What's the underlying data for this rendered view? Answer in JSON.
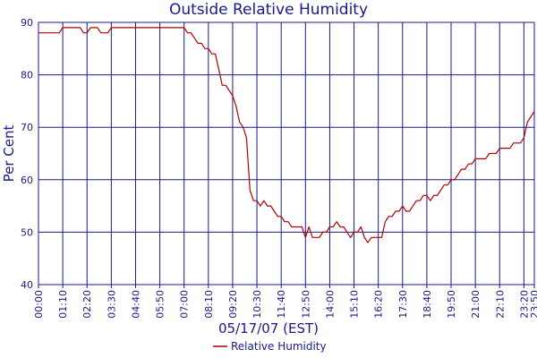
{
  "chart_data": {
    "type": "line",
    "title": "Outside Relative Humidity",
    "xlabel": "05/17/07 (EST)",
    "ylabel": "Per Cent",
    "ylim": [
      40,
      90
    ],
    "yticks": [
      40,
      50,
      60,
      70,
      80,
      90
    ],
    "x_range": [
      "00:00",
      "23:50"
    ],
    "x_ticks": [
      "00:00",
      "01:10",
      "02:20",
      "03:30",
      "04:40",
      "05:50",
      "07:00",
      "08:10",
      "09:20",
      "10:30",
      "11:40",
      "12:50",
      "14:00",
      "15:10",
      "16:20",
      "17:30",
      "18:40",
      "19:50",
      "21:00",
      "22:10",
      "23:20",
      "23:50"
    ],
    "grid": true,
    "legend_position": "bottom-center",
    "series": [
      {
        "name": "Relative Humidity",
        "color": "#b00000",
        "x": [
          "00:00",
          "00:40",
          "00:50",
          "01:00",
          "01:10",
          "01:30",
          "02:00",
          "02:10",
          "02:20",
          "02:30",
          "02:40",
          "02:50",
          "03:00",
          "03:10",
          "03:20",
          "03:30",
          "03:40",
          "04:00",
          "05:00",
          "06:00",
          "07:00",
          "07:10",
          "07:20",
          "07:30",
          "07:40",
          "07:50",
          "08:00",
          "08:10",
          "08:20",
          "08:30",
          "08:40",
          "08:50",
          "09:00",
          "09:10",
          "09:20",
          "09:30",
          "09:40",
          "09:50",
          "10:00",
          "10:10",
          "10:20",
          "10:30",
          "10:40",
          "10:50",
          "11:00",
          "11:10",
          "11:20",
          "11:30",
          "11:40",
          "11:50",
          "12:00",
          "12:10",
          "12:20",
          "12:30",
          "12:40",
          "12:50",
          "13:00",
          "13:10",
          "13:20",
          "13:30",
          "13:40",
          "13:50",
          "14:00",
          "14:10",
          "14:20",
          "14:30",
          "14:40",
          "14:50",
          "15:00",
          "15:10",
          "15:20",
          "15:30",
          "15:40",
          "15:50",
          "16:00",
          "16:10",
          "16:20",
          "16:30",
          "16:40",
          "16:50",
          "17:00",
          "17:10",
          "17:20",
          "17:30",
          "17:40",
          "17:50",
          "18:00",
          "18:10",
          "18:20",
          "18:30",
          "18:40",
          "18:50",
          "19:00",
          "19:10",
          "19:20",
          "19:30",
          "19:40",
          "19:50",
          "20:00",
          "20:10",
          "20:20",
          "20:30",
          "20:40",
          "20:50",
          "21:00",
          "21:10",
          "21:20",
          "21:30",
          "21:40",
          "21:50",
          "22:00",
          "22:10",
          "22:20",
          "22:30",
          "22:40",
          "22:50",
          "23:00",
          "23:10",
          "23:20",
          "23:30",
          "23:40",
          "23:50"
        ],
        "values": [
          88,
          88,
          88,
          88,
          89,
          89,
          89,
          88,
          88,
          89,
          89,
          89,
          88,
          88,
          88,
          89,
          89,
          89,
          89,
          89,
          89,
          88,
          88,
          87,
          86,
          86,
          85,
          85,
          84,
          84,
          81,
          78,
          78,
          77,
          76,
          74,
          71,
          70,
          68,
          58,
          56,
          56,
          55,
          56,
          55,
          55,
          54,
          53,
          53,
          52,
          52,
          51,
          51,
          51,
          51,
          49,
          51,
          49,
          49,
          49,
          50,
          50,
          51,
          51,
          52,
          51,
          51,
          50,
          49,
          50,
          50,
          51,
          49,
          48,
          49,
          49,
          49,
          49,
          52,
          53,
          53,
          54,
          54,
          55,
          54,
          54,
          55,
          56,
          56,
          57,
          57,
          56,
          57,
          57,
          58,
          59,
          59,
          60,
          60,
          61,
          62,
          62,
          63,
          63,
          64,
          64,
          64,
          64,
          65,
          65,
          65,
          66,
          66,
          66,
          66,
          67,
          67,
          67,
          68,
          71,
          72,
          73
        ]
      }
    ]
  }
}
